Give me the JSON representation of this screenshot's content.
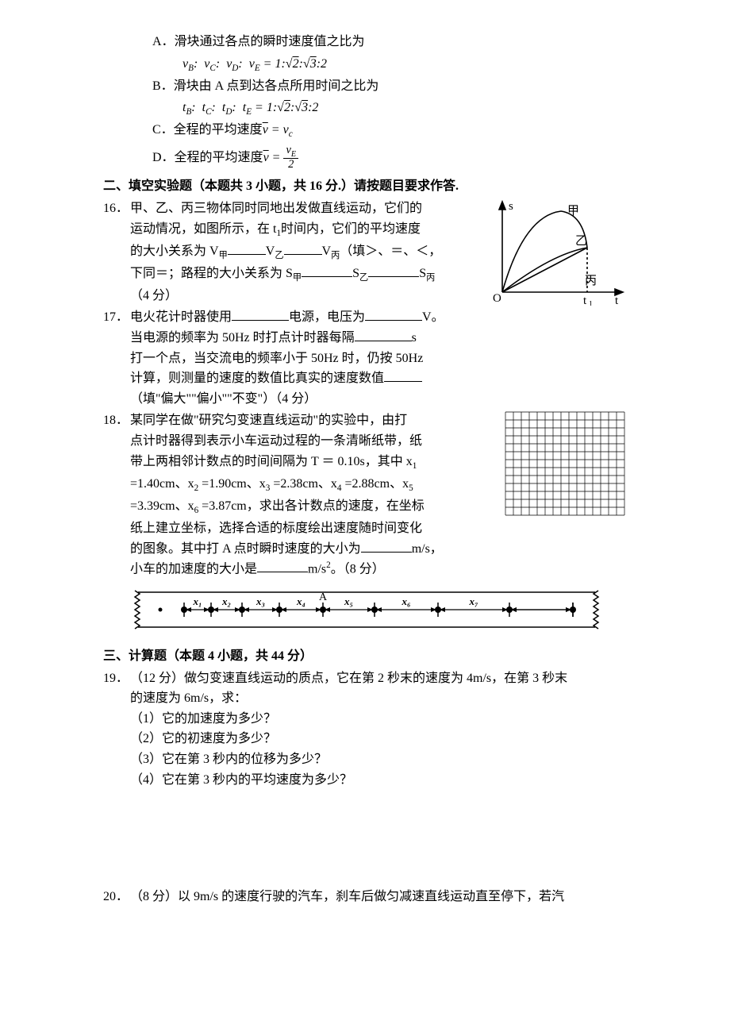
{
  "q15": {
    "A": {
      "lead": "A．滑块通过各点的瞬时速度值之比为",
      "formula_vars": [
        "B",
        "C",
        "D",
        "E"
      ],
      "rhs": "= 1:√2:√3:2",
      "var_letter": "v"
    },
    "B": {
      "lead": "B．滑块由 A 点到达各点所用时间之比为",
      "formula_vars": [
        "B",
        "C",
        "D",
        "E"
      ],
      "rhs": "= 1:√2:√3:2",
      "var_letter": "t"
    },
    "C": {
      "text_a": "C．全程的平均速度",
      "eq": " = ",
      "rhs": "v",
      "rhs_sub": "c"
    },
    "D": {
      "text_a": "D．全程的平均速度",
      "eq": " = ",
      "frac_num_v": "v",
      "frac_num_sub": "E",
      "frac_den": "2"
    }
  },
  "section2": {
    "title": "二、填空实验题（本题共 3 小题，共 16 分.）请按题目要求作答."
  },
  "q16": {
    "num": "16．",
    "l1": "甲、乙、丙三物体同时同地出发做直线运动，它们的",
    "l2_a": "运动情况，如图所示，在 t",
    "l2_sub": "1",
    "l2_b": "时间内，它们的平均速度",
    "l3_a": "的大小关系为 V",
    "l3_sub1": "甲",
    "l3_b": "V",
    "l3_sub2": "乙",
    "l3_c": "V",
    "l3_sub3": "丙",
    "l3_d": "（填＞、＝、＜，",
    "l4_a": "下同＝；路程的大小关系为 S",
    "l4_sub1": "甲",
    "l4_b": "S",
    "l4_sub2": "乙",
    "l4_c": "S",
    "l4_sub3": "丙",
    "l5": "（4 分）"
  },
  "graph16": {
    "labels": {
      "y": "s",
      "x1": "t",
      "x1sub": "1",
      "x2": "t",
      "origin": "O",
      "a": "甲",
      "b": "乙",
      "c": "丙"
    }
  },
  "q17": {
    "num": "17．",
    "l1_a": "电火花计时器使用",
    "l1_b": "电源，电压为",
    "l1_c": "V。",
    "l2_a": "当电源的频率为 50Hz 时打点计时器每隔",
    "l2_b": "s",
    "l3": "打一个点，当交流电的频率小于 50Hz 时，仍按 50Hz",
    "l4_a": "计算，则测量的速度的数值比真实的速度数值",
    "l5": "（填\"偏大\"\"偏小\"\"不变\"）（4 分）"
  },
  "q18": {
    "num": "18．",
    "l1": "某同学在做\"研究匀变速直线运动\"的实验中，由打",
    "l2": "点计时器得到表示小车运动过程的一条清晰纸带，纸",
    "l3_a": "带上两相邻计数点的时间间隔为 T ＝ 0.10s，其中 x",
    "l3_sub": "1",
    "l4_a": "=1.40cm、x",
    "l4_s1": "2",
    "l4_b": " =1.90cm、x",
    "l4_s2": "3",
    "l4_c": " =2.38cm、x",
    "l4_s3": "4",
    "l4_d": " =2.88cm、x",
    "l4_s4": "5",
    "l5_a": "=3.39cm、x",
    "l5_s1": "6",
    "l5_b": " =3.87cm，求出各计数点的速度，在坐标",
    "l6": "纸上建立坐标，选择合适的标度绘出速度随时间变化",
    "l7_a": "的图象。其中打 A 点时瞬时速度的大小为",
    "l7_b": "m/s，",
    "l8_a": "小车的加速度的大小是",
    "l8_b": "m/s",
    "l8_sup": "2",
    "l8_c": "。（8 分）"
  },
  "grid18": {
    "cols": 15,
    "rows": 13,
    "cell": 10
  },
  "tape": {
    "labels": [
      "x₁",
      "x₂",
      "x₃",
      "x₄",
      "A",
      "x₅",
      "x₆",
      "x₇"
    ]
  },
  "section3": {
    "title": "三、计算题（本题 4 小题，共 44 分）"
  },
  "q19": {
    "num": "19．",
    "l1": "（12 分）做匀变速直线运动的质点，它在第 2 秒末的速度为 4m/s，在第 3 秒末",
    "l2": "的速度为 6m/s，求：",
    "p1": "（1）它的加速度为多少？",
    "p2": "（2）它的初速度为多少？",
    "p3": "（3）它在第 3 秒内的位移为多少？",
    "p4": "（4）它在第 3 秒内的平均速度为多少？"
  },
  "q20": {
    "num": "20．",
    "l1": "（8 分）以 9m/s 的速度行驶的汽车，刹车后做匀减速直线运动直至停下，若汽"
  }
}
